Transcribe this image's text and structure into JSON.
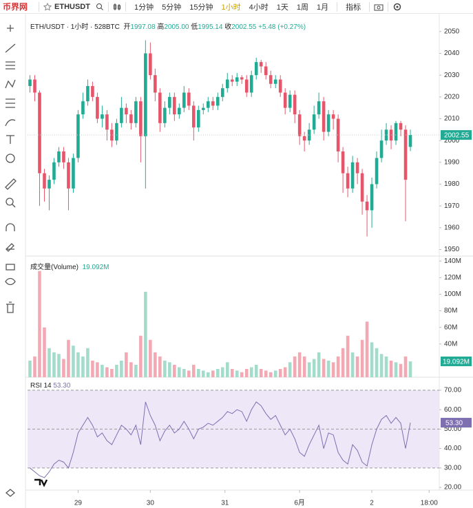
{
  "toolbar": {
    "logo": "币界网",
    "symbol": "ETHUSDT",
    "intervals": [
      "1分钟",
      "5分钟",
      "15分钟",
      "1小时",
      "4小时",
      "1天",
      "1周",
      "1月"
    ],
    "active_interval": 3,
    "indicators": "指标"
  },
  "chart_data": [
    {
      "type": "candlestick",
      "title": "ETH/USDT · 1小时 · 528BTC",
      "legend": [
        {
          "label": "开",
          "value": "1997.08"
        },
        {
          "label": "高",
          "value": "2005.00"
        },
        {
          "label": "低",
          "value": "1995.14"
        },
        {
          "label": "收",
          "value": "2002.55"
        }
      ],
      "change": "+5.48 (+0.27%)",
      "up_color": "#22ab94",
      "down_color": "#e5566b",
      "open": [
        2025,
        2028,
        2022,
        1985,
        1978,
        1982,
        1990,
        1995,
        1990,
        1978,
        1992,
        2012,
        2018,
        2025,
        2020,
        2010,
        2012,
        2005,
        2000,
        2008,
        2015,
        2012,
        2008,
        2018,
        2002,
        2040,
        2030,
        2022,
        2008,
        2015,
        2020,
        2012,
        2015,
        2022,
        2016,
        2006,
        2014,
        2015,
        2018,
        2016,
        2020,
        2024,
        2028,
        2027,
        2029,
        2028,
        2022,
        2030,
        2036,
        2034,
        2030,
        2026,
        2028,
        2022,
        2015,
        2021,
        2012,
        2002,
        2000,
        2005,
        2012,
        2018,
        2004,
        2012,
        2010,
        1995,
        1985,
        1978,
        1990,
        1985,
        1972,
        1968,
        1980,
        1992,
        2000,
        2005,
        2000,
        2008,
        2005,
        1997.08
      ],
      "high": [
        2030,
        2030,
        2023,
        1987,
        1984,
        1992,
        1997,
        1997,
        1992,
        1994,
        2014,
        2022,
        2028,
        2027,
        2022,
        2016,
        2014,
        2008,
        2010,
        2020,
        2017,
        2014,
        2020,
        2020,
        2046,
        2045,
        2033,
        2024,
        2018,
        2022,
        2022,
        2017,
        2025,
        2024,
        2018,
        2016,
        2017,
        2020,
        2020,
        2022,
        2026,
        2031,
        2030,
        2031,
        2030,
        2030,
        2032,
        2038,
        2037,
        2036,
        2032,
        2030,
        2030,
        2024,
        2023,
        2023,
        2014,
        2004,
        2008,
        2016,
        2022,
        2020,
        2014,
        2014,
        2012,
        1997,
        1988,
        1993,
        1992,
        1987,
        1975,
        1983,
        1995,
        2005,
        2008,
        2007,
        2009,
        2009,
        2007,
        2005.0
      ],
      "low": [
        2022,
        2018,
        1970,
        1972,
        1968,
        1980,
        1988,
        1987,
        1968,
        1976,
        1990,
        2010,
        2016,
        2018,
        2008,
        2006,
        2000,
        1997,
        1998,
        2006,
        2008,
        2005,
        2006,
        1990,
        1978,
        2028,
        2018,
        2004,
        2006,
        2012,
        2009,
        2010,
        2013,
        2014,
        2000,
        2004,
        2012,
        2013,
        2014,
        2014,
        2018,
        2022,
        2025,
        2025,
        2026,
        2020,
        2020,
        2028,
        2031,
        2028,
        2024,
        2024,
        2020,
        2012,
        2013,
        2008,
        1998,
        1995,
        1998,
        2003,
        2010,
        2000,
        2002,
        2005,
        1990,
        1976,
        1974,
        1976,
        1980,
        1966,
        1956,
        1960,
        1978,
        1990,
        1998,
        1996,
        1998,
        2002,
        1963,
        1995.14
      ],
      "close": [
        2028,
        2022,
        1985,
        1978,
        1982,
        1990,
        1995,
        1990,
        1978,
        1992,
        2012,
        2018,
        2025,
        2020,
        2010,
        2012,
        2005,
        2000,
        2008,
        2015,
        2012,
        2008,
        2018,
        2002,
        2040,
        2030,
        2022,
        2008,
        2015,
        2020,
        2012,
        2015,
        2022,
        2016,
        2006,
        2014,
        2015,
        2018,
        2016,
        2020,
        2024,
        2028,
        2027,
        2029,
        2028,
        2022,
        2030,
        2036,
        2034,
        2030,
        2026,
        2028,
        2022,
        2015,
        2021,
        2012,
        2002,
        2000,
        2005,
        2012,
        2018,
        2004,
        2012,
        2010,
        1995,
        1985,
        1978,
        1990,
        1985,
        1972,
        1968,
        1980,
        1992,
        2000,
        2005,
        2000,
        2008,
        2005,
        1982,
        2002.55
      ],
      "ylim": [
        1947,
        2055
      ],
      "yticks": [
        1950,
        1960,
        1970,
        1980,
        1990,
        2000,
        2010,
        2020,
        2030,
        2040,
        2050
      ]
    },
    {
      "type": "bar",
      "title": "成交量(Volume)",
      "up_color": "#a3dccb",
      "down_color": "#f3a9b4",
      "tag_color": "#22ab94",
      "values": [
        20,
        25,
        128,
        60,
        35,
        30,
        28,
        22,
        45,
        38,
        30,
        25,
        35,
        20,
        18,
        15,
        12,
        10,
        15,
        20,
        30,
        18,
        15,
        50,
        103,
        45,
        30,
        25,
        20,
        18,
        15,
        12,
        10,
        8,
        15,
        10,
        8,
        6,
        8,
        10,
        12,
        18,
        10,
        8,
        6,
        10,
        12,
        15,
        10,
        8,
        6,
        8,
        10,
        12,
        18,
        25,
        30,
        25,
        18,
        22,
        30,
        22,
        20,
        18,
        25,
        35,
        50,
        30,
        25,
        45,
        67,
        42,
        35,
        28,
        25,
        20,
        18,
        16,
        25,
        19.092
      ],
      "last_value_label": "19.092M",
      "ylim": [
        0,
        146
      ],
      "yticks": [
        {
          "value": 40,
          "label": "40M"
        },
        {
          "value": 60,
          "label": "60M"
        },
        {
          "value": 80,
          "label": "80M"
        },
        {
          "value": 100,
          "label": "100M"
        },
        {
          "value": 120,
          "label": "120M"
        },
        {
          "value": 140,
          "label": "140M"
        }
      ]
    },
    {
      "type": "line",
      "title": "RSI",
      "period": "14",
      "color": "#7e6fb0",
      "band_color": "#ede7f8",
      "values": [
        30,
        28,
        26,
        25,
        28,
        32,
        34,
        33,
        30,
        38,
        48,
        52,
        56,
        52,
        46,
        48,
        44,
        42,
        47,
        52,
        50,
        47,
        52,
        42,
        64,
        57,
        52,
        44,
        49,
        52,
        48,
        50,
        54,
        50,
        45,
        50,
        51,
        53,
        52,
        54,
        56,
        59,
        58,
        60,
        59,
        54,
        60,
        64,
        62,
        58,
        55,
        57,
        52,
        47,
        50,
        45,
        38,
        36,
        42,
        47,
        52,
        40,
        48,
        47,
        38,
        34,
        32,
        42,
        39,
        33,
        31,
        42,
        50,
        55,
        57,
        53,
        56,
        53,
        40,
        53.3
      ],
      "last_value_label": "53.30",
      "levels": [
        70,
        50,
        30
      ],
      "ylim": [
        18.6,
        76.7
      ],
      "yticks": [
        {
          "value": 20,
          "label": "20.00"
        },
        {
          "value": 30,
          "label": "30.00"
        },
        {
          "value": 40,
          "label": "40.00"
        },
        {
          "value": 50,
          "label": "50.00"
        },
        {
          "value": 60,
          "label": "60.00"
        },
        {
          "value": 70,
          "label": "70.00"
        }
      ],
      "xlim": [
        0,
        85.5
      ],
      "xticks": [
        {
          "value": 10.5,
          "label": "29"
        },
        {
          "value": 25.5,
          "label": "30"
        },
        {
          "value": 41,
          "label": "31"
        },
        {
          "value": 56.5,
          "label": "6月"
        },
        {
          "value": 71.5,
          "label": "2"
        },
        {
          "value": 83.4,
          "label": "18:00"
        }
      ]
    }
  ]
}
